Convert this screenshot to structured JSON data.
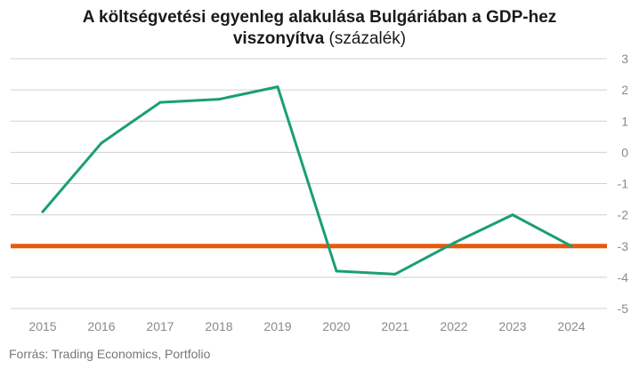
{
  "title": {
    "line1": "A költségvetési egyenleg alakulása Bulgáriában a GDP-hez",
    "line2_bold": "viszonyítva",
    "line2_light": " (százalék)"
  },
  "source": "Forrás: Trading Economics, Portfolio",
  "colors": {
    "series": "#1a9e76",
    "reference": "#e8590c",
    "grid": "#d0d0d0",
    "tick": "#8a8a8a"
  },
  "chart_data": {
    "type": "line",
    "x": [
      "2015",
      "2016",
      "2017",
      "2018",
      "2019",
      "2020",
      "2021",
      "2022",
      "2023",
      "2024"
    ],
    "series": [
      {
        "values": [
          -1.9,
          0.3,
          1.6,
          1.7,
          2.1,
          -3.8,
          -3.9,
          -2.9,
          -2.0,
          -3.0
        ]
      }
    ],
    "reference_line": {
      "y": -3
    },
    "ylim": [
      -5,
      3
    ],
    "yticks": [
      3,
      2,
      1,
      0,
      -1,
      -2,
      -3,
      -4,
      -5
    ],
    "ytick_labels": [
      "3",
      "2",
      "1",
      "0",
      "-1",
      "-2",
      "-3",
      "-4",
      "-5"
    ],
    "y_axis_side": "right",
    "grid": true,
    "xlabel": "",
    "ylabel": ""
  }
}
